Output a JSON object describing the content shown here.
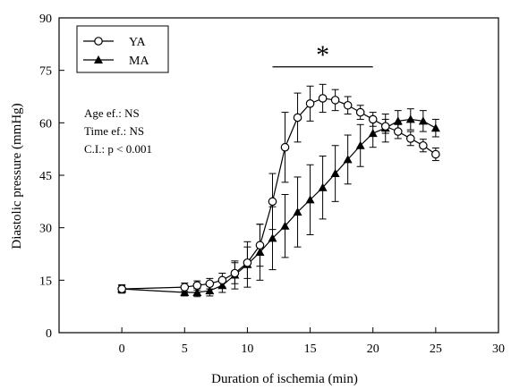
{
  "chart_data": {
    "type": "line",
    "xlabel": "Duration of ischemia (min)",
    "ylabel": "Diastolic pressure (mmHg)",
    "xlim": [
      -5,
      30
    ],
    "ylim": [
      0,
      90
    ],
    "xticks": [
      0,
      5,
      10,
      15,
      20,
      25,
      30
    ],
    "xtick_labels": [
      "0",
      "5",
      "10",
      "15",
      "20",
      "25",
      "30"
    ],
    "yticks": [
      0,
      15,
      30,
      45,
      60,
      75,
      90
    ],
    "grid": false,
    "legend_position": "top-left",
    "series": [
      {
        "name": "YA",
        "marker": "open-circle",
        "x": [
          0,
          5,
          6,
          7,
          8,
          9,
          10,
          11,
          12,
          13,
          14,
          15,
          16,
          17,
          18,
          19,
          20,
          21,
          22,
          23,
          24,
          25
        ],
        "y": [
          12.5,
          13,
          13.5,
          14,
          15,
          17,
          20,
          25,
          37.5,
          53,
          61.5,
          65.5,
          67,
          66.5,
          65,
          63,
          61,
          59,
          57.5,
          55.5,
          53.5,
          51
        ],
        "err": [
          1.2,
          1.2,
          1.3,
          1.5,
          2,
          3,
          4.5,
          6,
          8,
          10,
          7,
          5,
          4,
          3,
          2.5,
          2,
          2,
          2,
          2,
          2,
          1.8,
          1.8
        ]
      },
      {
        "name": "MA",
        "marker": "filled-triangle",
        "x": [
          0,
          5,
          6,
          7,
          8,
          9,
          10,
          11,
          12,
          13,
          14,
          15,
          16,
          17,
          18,
          19,
          20,
          21,
          22,
          23,
          24,
          25
        ],
        "y": [
          12.5,
          11.5,
          11.5,
          12,
          13.5,
          16.5,
          19.5,
          23,
          27,
          30.5,
          34.5,
          38,
          41.5,
          45.5,
          49.5,
          53.5,
          57,
          58.5,
          60.5,
          61,
          60.5,
          58.5
        ],
        "err": [
          1,
          1,
          1.2,
          1.5,
          2,
          4,
          6.5,
          8,
          9,
          9,
          10,
          10,
          9,
          8,
          7,
          6,
          4,
          4,
          3,
          3,
          3,
          2.5
        ]
      }
    ],
    "annotations": {
      "stat_lines": [
        "Age ef.: NS",
        "Time ef.: NS",
        "C.I.: p < 0.001"
      ],
      "significance_symbol": "*",
      "significance_range": [
        12,
        20
      ],
      "significance_level": 76
    }
  }
}
